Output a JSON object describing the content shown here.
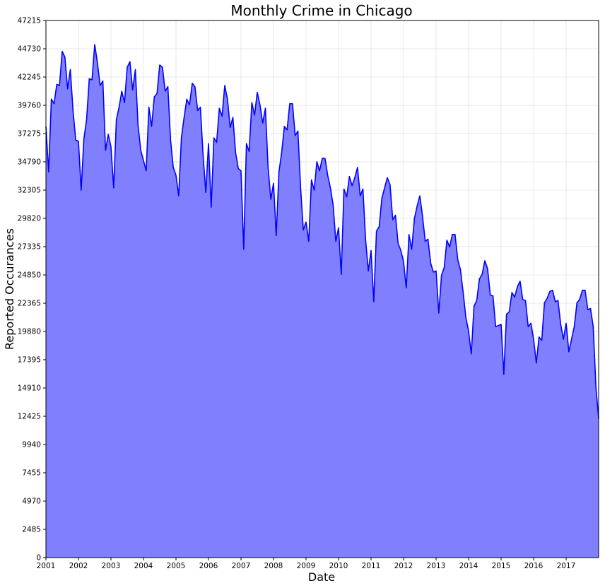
{
  "chart_data": {
    "type": "area",
    "title": "Monthly Crime in Chicago",
    "xlabel": "Date",
    "ylabel": "Reported Occurances",
    "x_start": "2001-01",
    "x_end": "2018-01",
    "x_ticks": [
      "2001",
      "2002",
      "2003",
      "2004",
      "2005",
      "2006",
      "2007",
      "2008",
      "2009",
      "2010",
      "2011",
      "2012",
      "2013",
      "2014",
      "2015",
      "2016",
      "2017"
    ],
    "y_ticks": [
      0,
      2485,
      4970,
      7455,
      9940,
      12425,
      14910,
      17395,
      19880,
      22365,
      24850,
      27335,
      29820,
      32305,
      34790,
      37275,
      39760,
      42245,
      44730,
      47215
    ],
    "ylim": [
      0,
      47215
    ],
    "grid": true,
    "line_color": "#0000ff",
    "fill_color": "#8080ff",
    "series": [
      {
        "points": [
          [
            "2001-01",
            37900
          ],
          [
            "2001-02",
            33900
          ],
          [
            "2001-03",
            40300
          ],
          [
            "2001-04",
            39900
          ],
          [
            "2001-05",
            41600
          ],
          [
            "2001-06",
            41500
          ],
          [
            "2001-07",
            44500
          ],
          [
            "2001-08",
            44000
          ],
          [
            "2001-09",
            41200
          ],
          [
            "2001-10",
            42900
          ],
          [
            "2001-11",
            39300
          ],
          [
            "2001-12",
            36700
          ],
          [
            "2002-01",
            36600
          ],
          [
            "2002-02",
            32300
          ],
          [
            "2002-03",
            36800
          ],
          [
            "2002-04",
            38500
          ],
          [
            "2002-05",
            42100
          ],
          [
            "2002-06",
            42000
          ],
          [
            "2002-07",
            45100
          ],
          [
            "2002-08",
            43500
          ],
          [
            "2002-09",
            41500
          ],
          [
            "2002-10",
            41900
          ],
          [
            "2002-11",
            35800
          ],
          [
            "2002-12",
            37200
          ],
          [
            "2003-01",
            36100
          ],
          [
            "2003-02",
            32500
          ],
          [
            "2003-03",
            38500
          ],
          [
            "2003-04",
            39600
          ],
          [
            "2003-05",
            41000
          ],
          [
            "2003-06",
            40000
          ],
          [
            "2003-07",
            43100
          ],
          [
            "2003-08",
            43600
          ],
          [
            "2003-09",
            41100
          ],
          [
            "2003-10",
            42900
          ],
          [
            "2003-11",
            38000
          ],
          [
            "2003-12",
            35800
          ],
          [
            "2004-01",
            34900
          ],
          [
            "2004-02",
            34000
          ],
          [
            "2004-03",
            39600
          ],
          [
            "2004-04",
            37900
          ],
          [
            "2004-05",
            40500
          ],
          [
            "2004-06",
            40800
          ],
          [
            "2004-07",
            43300
          ],
          [
            "2004-08",
            43100
          ],
          [
            "2004-09",
            41000
          ],
          [
            "2004-10",
            41400
          ],
          [
            "2004-11",
            36700
          ],
          [
            "2004-12",
            34300
          ],
          [
            "2005-01",
            33600
          ],
          [
            "2005-02",
            31800
          ],
          [
            "2005-03",
            36900
          ],
          [
            "2005-04",
            38700
          ],
          [
            "2005-05",
            40300
          ],
          [
            "2005-06",
            39800
          ],
          [
            "2005-07",
            41700
          ],
          [
            "2005-08",
            41400
          ],
          [
            "2005-09",
            39300
          ],
          [
            "2005-10",
            39600
          ],
          [
            "2005-11",
            35400
          ],
          [
            "2005-12",
            32100
          ],
          [
            "2006-01",
            36400
          ],
          [
            "2006-02",
            30800
          ],
          [
            "2006-03",
            36900
          ],
          [
            "2006-04",
            36500
          ],
          [
            "2006-05",
            39500
          ],
          [
            "2006-06",
            38800
          ],
          [
            "2006-07",
            41500
          ],
          [
            "2006-08",
            40300
          ],
          [
            "2006-09",
            37800
          ],
          [
            "2006-10",
            38700
          ],
          [
            "2006-11",
            35600
          ],
          [
            "2006-12",
            34200
          ],
          [
            "2007-01",
            34000
          ],
          [
            "2007-02",
            27100
          ],
          [
            "2007-03",
            36400
          ],
          [
            "2007-04",
            35700
          ],
          [
            "2007-05",
            40000
          ],
          [
            "2007-06",
            38900
          ],
          [
            "2007-07",
            40900
          ],
          [
            "2007-08",
            39800
          ],
          [
            "2007-09",
            38200
          ],
          [
            "2007-10",
            39500
          ],
          [
            "2007-11",
            34300
          ],
          [
            "2007-12",
            31500
          ],
          [
            "2008-01",
            32900
          ],
          [
            "2008-02",
            28300
          ],
          [
            "2008-03",
            33900
          ],
          [
            "2008-04",
            35600
          ],
          [
            "2008-05",
            37900
          ],
          [
            "2008-06",
            37600
          ],
          [
            "2008-07",
            39900
          ],
          [
            "2008-08",
            39900
          ],
          [
            "2008-09",
            37100
          ],
          [
            "2008-10",
            37500
          ],
          [
            "2008-11",
            32500
          ],
          [
            "2008-12",
            28800
          ],
          [
            "2009-01",
            29500
          ],
          [
            "2009-02",
            27800
          ],
          [
            "2009-03",
            33200
          ],
          [
            "2009-04",
            32300
          ],
          [
            "2009-05",
            34800
          ],
          [
            "2009-06",
            34000
          ],
          [
            "2009-07",
            35100
          ],
          [
            "2009-08",
            35100
          ],
          [
            "2009-09",
            33600
          ],
          [
            "2009-10",
            32500
          ],
          [
            "2009-11",
            31000
          ],
          [
            "2009-12",
            27800
          ],
          [
            "2010-01",
            29000
          ],
          [
            "2010-02",
            24900
          ],
          [
            "2010-03",
            32400
          ],
          [
            "2010-04",
            31700
          ],
          [
            "2010-05",
            33500
          ],
          [
            "2010-06",
            32700
          ],
          [
            "2010-07",
            33400
          ],
          [
            "2010-08",
            34300
          ],
          [
            "2010-09",
            31800
          ],
          [
            "2010-10",
            32400
          ],
          [
            "2010-11",
            27900
          ],
          [
            "2010-12",
            25200
          ],
          [
            "2011-01",
            27000
          ],
          [
            "2011-02",
            22500
          ],
          [
            "2011-03",
            28700
          ],
          [
            "2011-04",
            29100
          ],
          [
            "2011-05",
            31600
          ],
          [
            "2011-06",
            32500
          ],
          [
            "2011-07",
            33400
          ],
          [
            "2011-08",
            32800
          ],
          [
            "2011-09",
            29700
          ],
          [
            "2011-10",
            30100
          ],
          [
            "2011-11",
            27600
          ],
          [
            "2011-12",
            27000
          ],
          [
            "2012-01",
            26000
          ],
          [
            "2012-02",
            23700
          ],
          [
            "2012-03",
            28400
          ],
          [
            "2012-04",
            27100
          ],
          [
            "2012-05",
            29800
          ],
          [
            "2012-06",
            30900
          ],
          [
            "2012-07",
            31800
          ],
          [
            "2012-08",
            30000
          ],
          [
            "2012-09",
            27800
          ],
          [
            "2012-10",
            28000
          ],
          [
            "2012-11",
            25900
          ],
          [
            "2012-12",
            25100
          ],
          [
            "2013-01",
            25200
          ],
          [
            "2013-02",
            21500
          ],
          [
            "2013-03",
            24800
          ],
          [
            "2013-04",
            25500
          ],
          [
            "2013-05",
            27900
          ],
          [
            "2013-06",
            27300
          ],
          [
            "2013-07",
            28400
          ],
          [
            "2013-08",
            28400
          ],
          [
            "2013-09",
            26200
          ],
          [
            "2013-10",
            25300
          ],
          [
            "2013-11",
            23300
          ],
          [
            "2013-12",
            21100
          ],
          [
            "2014-01",
            19900
          ],
          [
            "2014-02",
            17900
          ],
          [
            "2014-03",
            22100
          ],
          [
            "2014-04",
            22600
          ],
          [
            "2014-05",
            24500
          ],
          [
            "2014-06",
            24900
          ],
          [
            "2014-07",
            26100
          ],
          [
            "2014-08",
            25400
          ],
          [
            "2014-09",
            23100
          ],
          [
            "2014-10",
            23000
          ],
          [
            "2014-11",
            20300
          ],
          [
            "2014-12",
            20400
          ],
          [
            "2015-01",
            20500
          ],
          [
            "2015-02",
            16100
          ],
          [
            "2015-03",
            21400
          ],
          [
            "2015-04",
            21600
          ],
          [
            "2015-05",
            23300
          ],
          [
            "2015-06",
            22900
          ],
          [
            "2015-07",
            23800
          ],
          [
            "2015-08",
            24300
          ],
          [
            "2015-09",
            22700
          ],
          [
            "2015-10",
            22600
          ],
          [
            "2015-11",
            20300
          ],
          [
            "2015-12",
            20600
          ],
          [
            "2016-01",
            19200
          ],
          [
            "2016-02",
            17100
          ],
          [
            "2016-03",
            19400
          ],
          [
            "2016-04",
            19100
          ],
          [
            "2016-05",
            22400
          ],
          [
            "2016-06",
            22800
          ],
          [
            "2016-07",
            23400
          ],
          [
            "2016-08",
            23500
          ],
          [
            "2016-09",
            22500
          ],
          [
            "2016-10",
            22600
          ],
          [
            "2016-11",
            20500
          ],
          [
            "2016-12",
            19200
          ],
          [
            "2017-01",
            20600
          ],
          [
            "2017-02",
            18100
          ],
          [
            "2017-03",
            19200
          ],
          [
            "2017-04",
            20300
          ],
          [
            "2017-05",
            22400
          ],
          [
            "2017-06",
            22700
          ],
          [
            "2017-07",
            23500
          ],
          [
            "2017-08",
            23500
          ],
          [
            "2017-09",
            21800
          ],
          [
            "2017-10",
            21900
          ],
          [
            "2017-11",
            20300
          ],
          [
            "2017-12",
            15000
          ],
          [
            "2018-01",
            12200
          ]
        ]
      }
    ]
  }
}
